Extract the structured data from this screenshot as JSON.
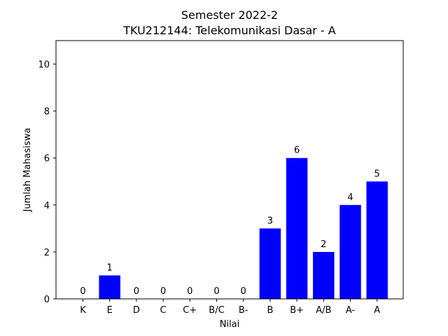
{
  "chart_data": {
    "type": "bar",
    "title": "Semester 2022-2",
    "subtitle": "TKU212144: Telekomunikasi Dasar - A",
    "xlabel": "Nilai",
    "ylabel": "Jumlah Mahasiswa",
    "categories": [
      "K",
      "E",
      "D",
      "C",
      "C+",
      "B/C",
      "B-",
      "B",
      "B+",
      "A/B",
      "A-",
      "A"
    ],
    "values": [
      0,
      1,
      0,
      0,
      0,
      0,
      0,
      3,
      6,
      2,
      4,
      5
    ],
    "data_labels": [
      "0",
      "1",
      "0",
      "0",
      "0",
      "0",
      "0",
      "3",
      "6",
      "2",
      "4",
      "5"
    ],
    "ylim": [
      0,
      11
    ],
    "yticks": [
      0,
      2,
      4,
      6,
      8,
      10
    ],
    "ytick_labels": [
      "0",
      "2",
      "4",
      "6",
      "8",
      "10"
    ],
    "grid": false,
    "bar_color": "#0000ff"
  }
}
